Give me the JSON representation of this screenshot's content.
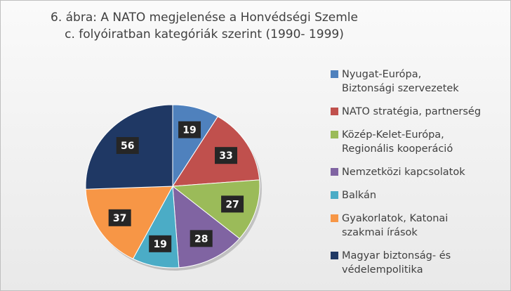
{
  "chart_data": {
    "type": "pie",
    "title": "6. ábra: A NATO megjelenése a Honvédségi Szemle c. folyóiratban kategóriák szerint (1990- 1999)",
    "categories": [
      "Nyugat-Európa, Biztonsági szervezetek",
      "NATO stratégia, partnerség",
      "Közép-Kelet-Európa, Regionális kooperáció",
      "Nemzetközi kapcsolatok",
      "Balkán",
      "Gyakorlatok, Katonai szakmai írások",
      "Magyar biztonság- és védelempolitika"
    ],
    "values": [
      19,
      33,
      27,
      28,
      19,
      37,
      56
    ],
    "colors": [
      "#4f81bd",
      "#c0504d",
      "#9bbb59",
      "#8064a2",
      "#4bacc6",
      "#f79646",
      "#1f3864"
    ],
    "legend": "right"
  }
}
